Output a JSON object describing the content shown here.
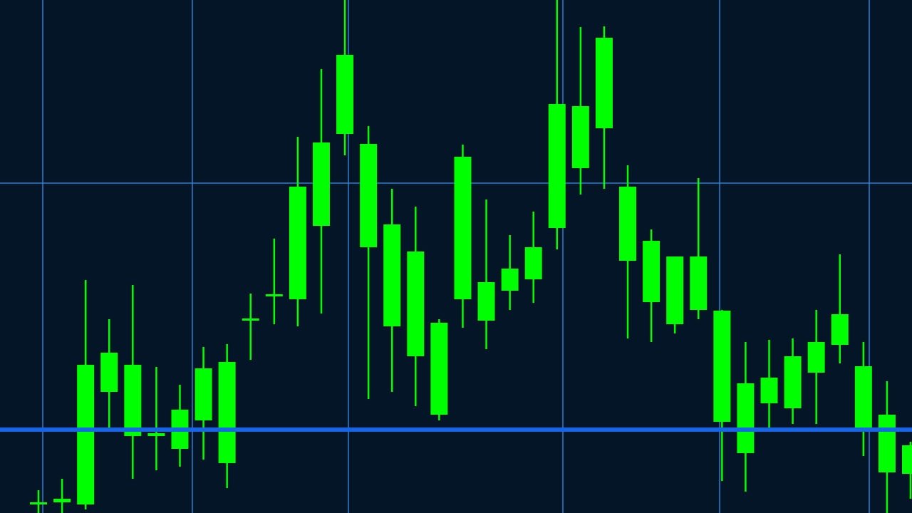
{
  "chart_data": {
    "type": "candlestick",
    "categories": [
      null,
      null,
      null,
      null,
      null,
      null,
      null,
      null,
      null,
      null,
      null,
      null,
      null,
      null,
      null,
      null,
      null,
      null,
      null,
      null,
      null,
      null,
      null,
      null,
      null,
      null,
      null,
      null,
      null,
      null,
      null,
      null,
      null,
      null,
      null,
      null,
      null,
      null
    ],
    "ylim": [
      0,
      720
    ],
    "series": [
      {
        "color": "#00ff00",
        "open": [
          12,
          15,
          12,
          170,
          108,
          108,
          90,
          130,
          70,
          270,
          304,
          300,
          403,
          532,
          373,
          262,
          220,
          138,
          300,
          270,
          312,
          328,
          400,
          484,
          540,
          354,
          296,
          265,
          285,
          128,
          84,
          154,
          147,
          197,
          236,
          120,
          57,
          55
        ],
        "high": [
          32,
          48,
          327,
          272,
          320,
          205,
          180,
          233,
          237,
          308,
          385,
          528,
          623,
          720,
          543,
          455,
          430,
          272,
          517,
          440,
          390,
          423,
          720,
          682,
          683,
          488,
          398,
          360,
          470,
          285,
          240,
          243,
          245,
          285,
          363,
          240,
          185,
          100
        ],
        "low": [
          0,
          0,
          5,
          120,
          48,
          60,
          65,
          75,
          35,
          215,
          265,
          262,
          280,
          502,
          160,
          170,
          150,
          130,
          260,
          230,
          285,
          295,
          370,
          447,
          455,
          245,
          240,
          252,
          272,
          45,
          30,
          120,
          125,
          125,
          210,
          80,
          0,
          20
        ],
        "close": [
          15,
          20,
          208,
          225,
          208,
          112,
          145,
          203,
          212,
          273,
          307,
          458,
          520,
          643,
          518,
          405,
          367,
          267,
          500,
          324,
          343,
          373,
          574,
          571,
          667,
          458,
          382,
          360,
          360,
          284,
          182,
          190,
          220,
          240,
          279,
          206,
          138,
          95
        ]
      }
    ]
  }
}
